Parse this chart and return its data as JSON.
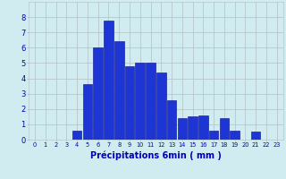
{
  "categories": [
    0,
    1,
    2,
    3,
    4,
    5,
    6,
    7,
    8,
    9,
    10,
    11,
    12,
    13,
    14,
    15,
    16,
    17,
    18,
    19,
    20,
    21,
    22,
    23
  ],
  "values": [
    0,
    0,
    0,
    0,
    0.6,
    3.6,
    6.0,
    7.8,
    6.4,
    4.8,
    5.0,
    5.0,
    4.4,
    2.6,
    1.4,
    1.5,
    1.6,
    0.6,
    1.4,
    0.6,
    0.0,
    0.5,
    0.0,
    0.0
  ],
  "bar_color": "#1c35d4",
  "bar_edge_color": "#0a0a88",
  "background_color": "#d0ecf0",
  "grid_color": "#b8c8cc",
  "xlabel": "Précipitations 6min ( mm )",
  "ylim": [
    0,
    9
  ],
  "yticks": [
    0,
    1,
    2,
    3,
    4,
    5,
    6,
    7,
    8
  ],
  "xlabel_color": "#0000bb",
  "tick_color": "#0000bb",
  "xtick_fontsize": 4.8,
  "ytick_fontsize": 6.0,
  "xlabel_fontsize": 7.0,
  "bar_width": 0.9
}
